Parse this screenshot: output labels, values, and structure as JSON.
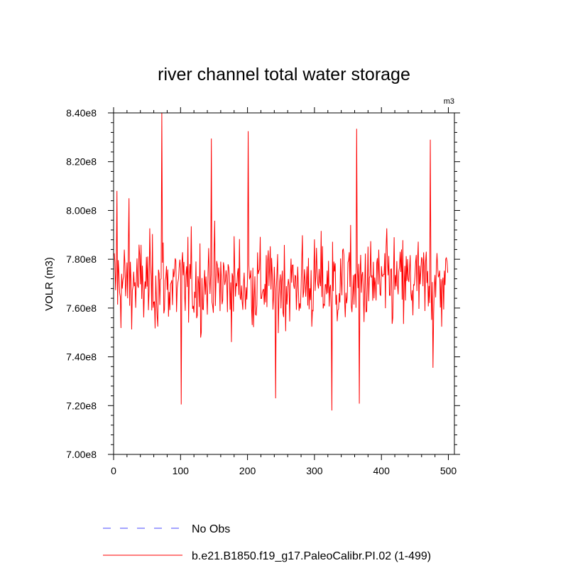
{
  "chart_data": {
    "type": "line",
    "title": "river channel total water storage",
    "ylabel": "VOLR  (m3)",
    "units_label": "m3",
    "xlabel": "",
    "xlim": [
      0,
      509
    ],
    "ylim": [
      700000000,
      840000000
    ],
    "x_ticks": [
      0,
      100,
      200,
      300,
      400,
      500
    ],
    "x_tick_labels": [
      "0",
      "100",
      "200",
      "300",
      "400",
      "500"
    ],
    "y_ticks": [
      700000000,
      720000000,
      740000000,
      760000000,
      780000000,
      800000000,
      820000000,
      840000000
    ],
    "y_tick_labels": [
      "7.00e8",
      "7.20e8",
      "7.40e8",
      "7.60e8",
      "7.80e8",
      "8.00e8",
      "8.20e8",
      "8.40e8"
    ],
    "legend_position": "bottom",
    "series": [
      {
        "name": "No Obs",
        "color": "#4a4aff",
        "style": "dashed",
        "values": []
      },
      {
        "name": "b.e21.B1850.f19_g17.PaleoCalibr.PI.02 (1-499)",
        "color": "#ff0000",
        "style": "solid",
        "x_start": 1,
        "x_end": 499,
        "mean": 770000000,
        "min": 718000000,
        "max": 840000000,
        "notable_points": [
          {
            "x": 5,
            "y": 808000000
          },
          {
            "x": 23,
            "y": 805000000
          },
          {
            "x": 72,
            "y": 840000000
          },
          {
            "x": 101,
            "y": 720500000
          },
          {
            "x": 146,
            "y": 829500000
          },
          {
            "x": 201,
            "y": 832500000
          },
          {
            "x": 242,
            "y": 723000000
          },
          {
            "x": 326,
            "y": 718000000
          },
          {
            "x": 363,
            "y": 833500000
          },
          {
            "x": 367,
            "y": 720800000
          },
          {
            "x": 473,
            "y": 829000000
          },
          {
            "x": 477,
            "y": 735500000
          }
        ]
      }
    ]
  }
}
